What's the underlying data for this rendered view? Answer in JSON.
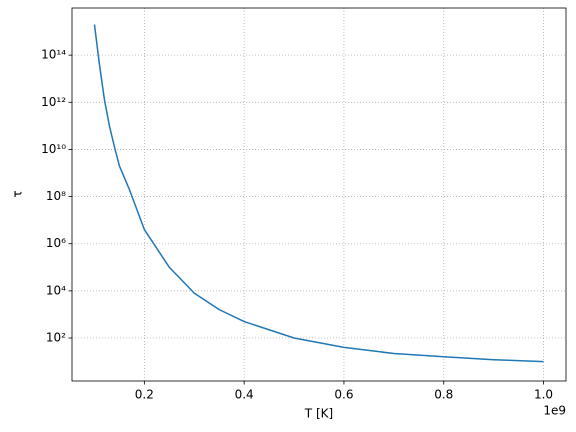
{
  "chart_data": {
    "type": "line",
    "x_label": "T [K]",
    "y_label": "τ",
    "x_offset_label": "1e9",
    "x": [
      100000000,
      110000000,
      120000000,
      130000000,
      140000000,
      150000000,
      170000000,
      200000000,
      250000000,
      300000000,
      350000000,
      400000000,
      500000000,
      600000000,
      700000000,
      800000000,
      900000000,
      1000000000
    ],
    "series": [
      {
        "color": "#1f77b4",
        "values": [
          2000000000000000.0,
          40000000000000.0,
          1300000000000.0,
          100000000000.0,
          13000000000.0,
          2000000000.0,
          200000000.0,
          4000000.0,
          100000.0,
          8000,
          1600,
          500,
          100,
          40,
          22,
          16,
          12,
          10
        ]
      }
    ],
    "xlim": [
      55000000,
      1045000000
    ],
    "xticks": [
      {
        "value": 200000000,
        "label": "0.2"
      },
      {
        "value": 400000000,
        "label": "0.4"
      },
      {
        "value": 600000000,
        "label": "0.6"
      },
      {
        "value": 800000000,
        "label": "0.8"
      },
      {
        "value": 1000000000,
        "label": "1.0"
      }
    ],
    "ylim": [
      1.5,
      1e+16
    ],
    "y_scale": "log",
    "yticks": [
      {
        "value": 100,
        "label": "10²"
      },
      {
        "value": 10000,
        "label": "10⁴"
      },
      {
        "value": 1000000,
        "label": "10⁶"
      },
      {
        "value": 100000000,
        "label": "10⁸"
      },
      {
        "value": 10000000000,
        "label": "10¹⁰"
      },
      {
        "value": 1000000000000,
        "label": "10¹²"
      },
      {
        "value": 100000000000000,
        "label": "10¹⁴"
      }
    ],
    "grid": true
  }
}
